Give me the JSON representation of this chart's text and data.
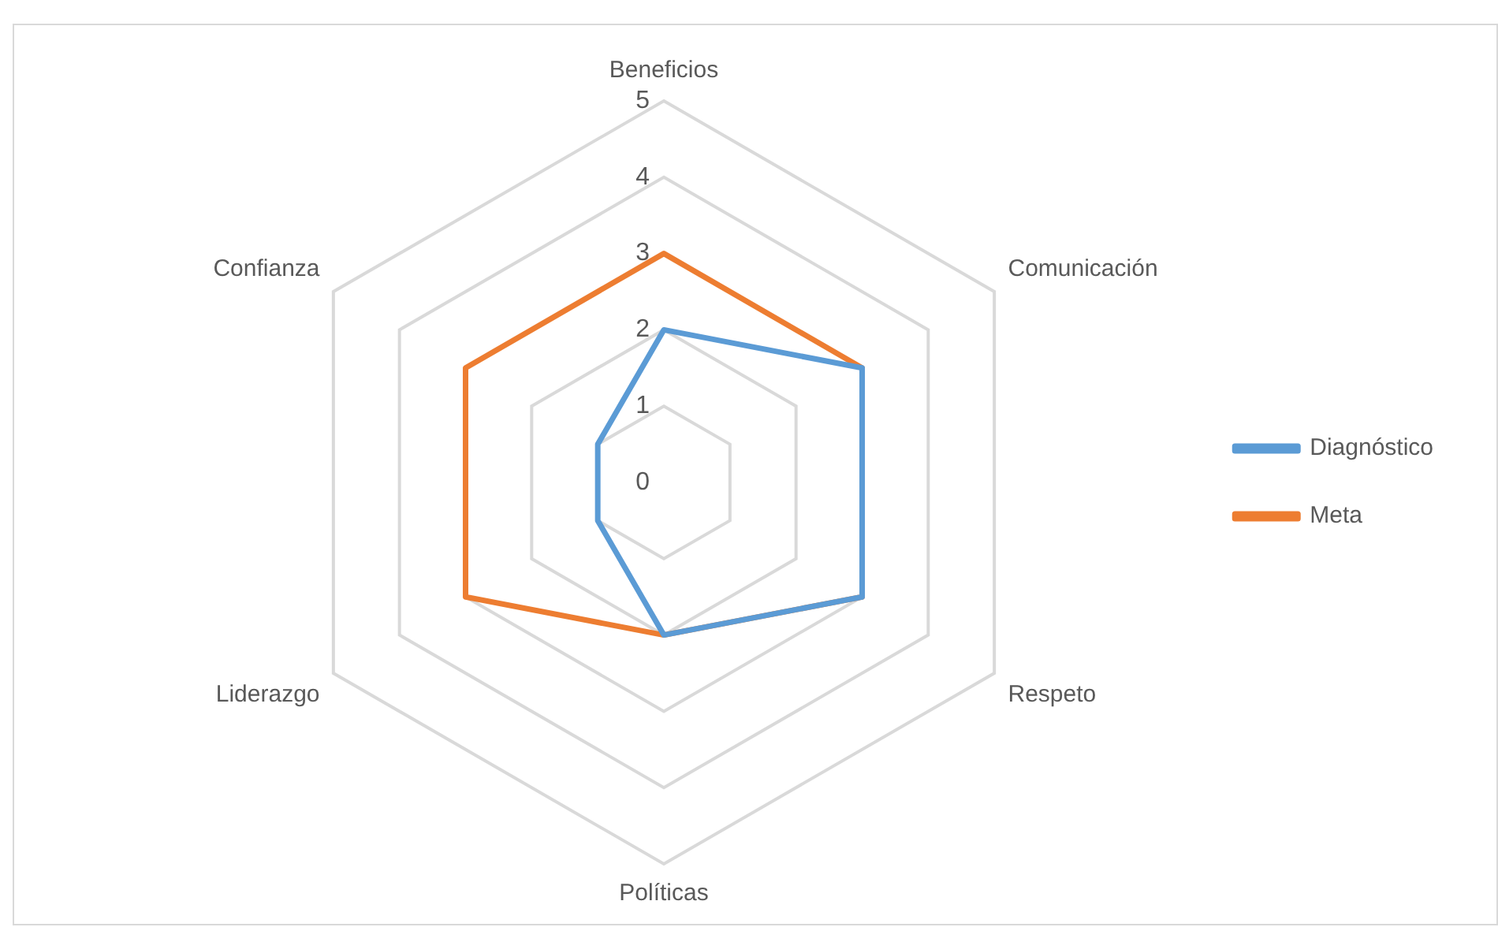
{
  "chart_data": {
    "type": "radar",
    "categories": [
      "Beneficios",
      "Comunicación",
      "Respeto",
      "Políticas",
      "Liderazgo",
      "Confianza"
    ],
    "series": [
      {
        "name": "Diagnóstico",
        "color": "#5b9bd5",
        "values": [
          2,
          3,
          3,
          2,
          1,
          1
        ]
      },
      {
        "name": "Meta",
        "color": "#ed7d31",
        "values": [
          3,
          3,
          3,
          2,
          3,
          3
        ]
      }
    ],
    "ylim": [
      0,
      5
    ],
    "yticks": [
      0,
      1,
      2,
      3,
      4,
      5
    ],
    "grid": true,
    "legend": "right",
    "marker": "none",
    "line_style": "solid"
  }
}
